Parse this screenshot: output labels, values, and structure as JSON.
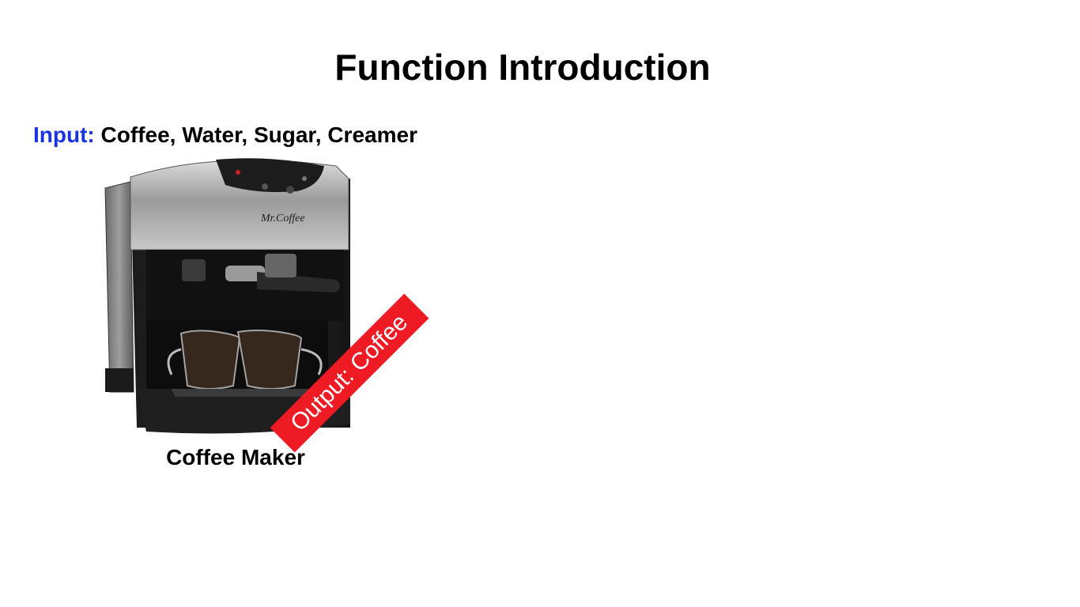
{
  "slide": {
    "title": "Function Introduction",
    "input_label": "Input:",
    "input_items": "Coffee, Water, Sugar, Creamer",
    "output_badge": "Output: Coffee",
    "caption": "Coffee Maker",
    "brand_logo": "Mr. Coffee"
  },
  "colors": {
    "input_label": "#1a33e0",
    "output_badge": "#ee1b24",
    "text": "#000000",
    "background": "#ffffff"
  },
  "icons": {
    "machine": "coffee-maker-photo"
  }
}
